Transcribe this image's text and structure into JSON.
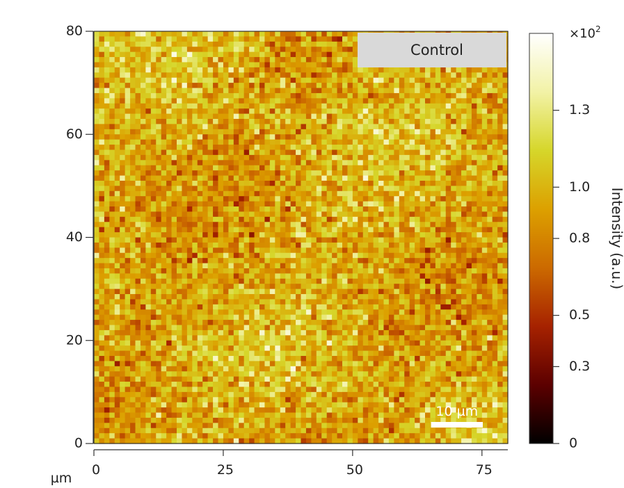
{
  "chart_data": {
    "type": "heatmap",
    "title": "",
    "panel_label": "Control",
    "x_unit_label": "µm",
    "xlim": [
      0,
      80
    ],
    "ylim": [
      0,
      80
    ],
    "x_ticks": [
      0,
      25,
      50,
      75
    ],
    "x_tick_labels": [
      "0",
      "25",
      "50",
      "75"
    ],
    "y_ticks": [
      0,
      20,
      40,
      60,
      80
    ],
    "y_tick_labels": [
      "0",
      "20",
      "40",
      "60",
      "80"
    ],
    "scale_bar": {
      "length_um": 10,
      "label": "10 µm"
    },
    "colorbar": {
      "label": "Intensity (a.u.)",
      "exponent_label": "×10",
      "exponent_power": "2",
      "range": [
        0,
        1.6
      ],
      "ticks": [
        0,
        0.3,
        0.5,
        0.8,
        1.0,
        1.3
      ],
      "tick_labels": [
        "0",
        "0.3",
        "0.5",
        "0.8",
        "1.0",
        "1.3"
      ],
      "colormap": [
        "#000000",
        "#5c0000",
        "#a62200",
        "#cc6a00",
        "#dca000",
        "#d6d62a",
        "#f2f2a6",
        "#ffffff"
      ]
    },
    "grid_size": [
      80,
      80
    ],
    "value_mean": 0.95,
    "value_spread": 0.35
  }
}
